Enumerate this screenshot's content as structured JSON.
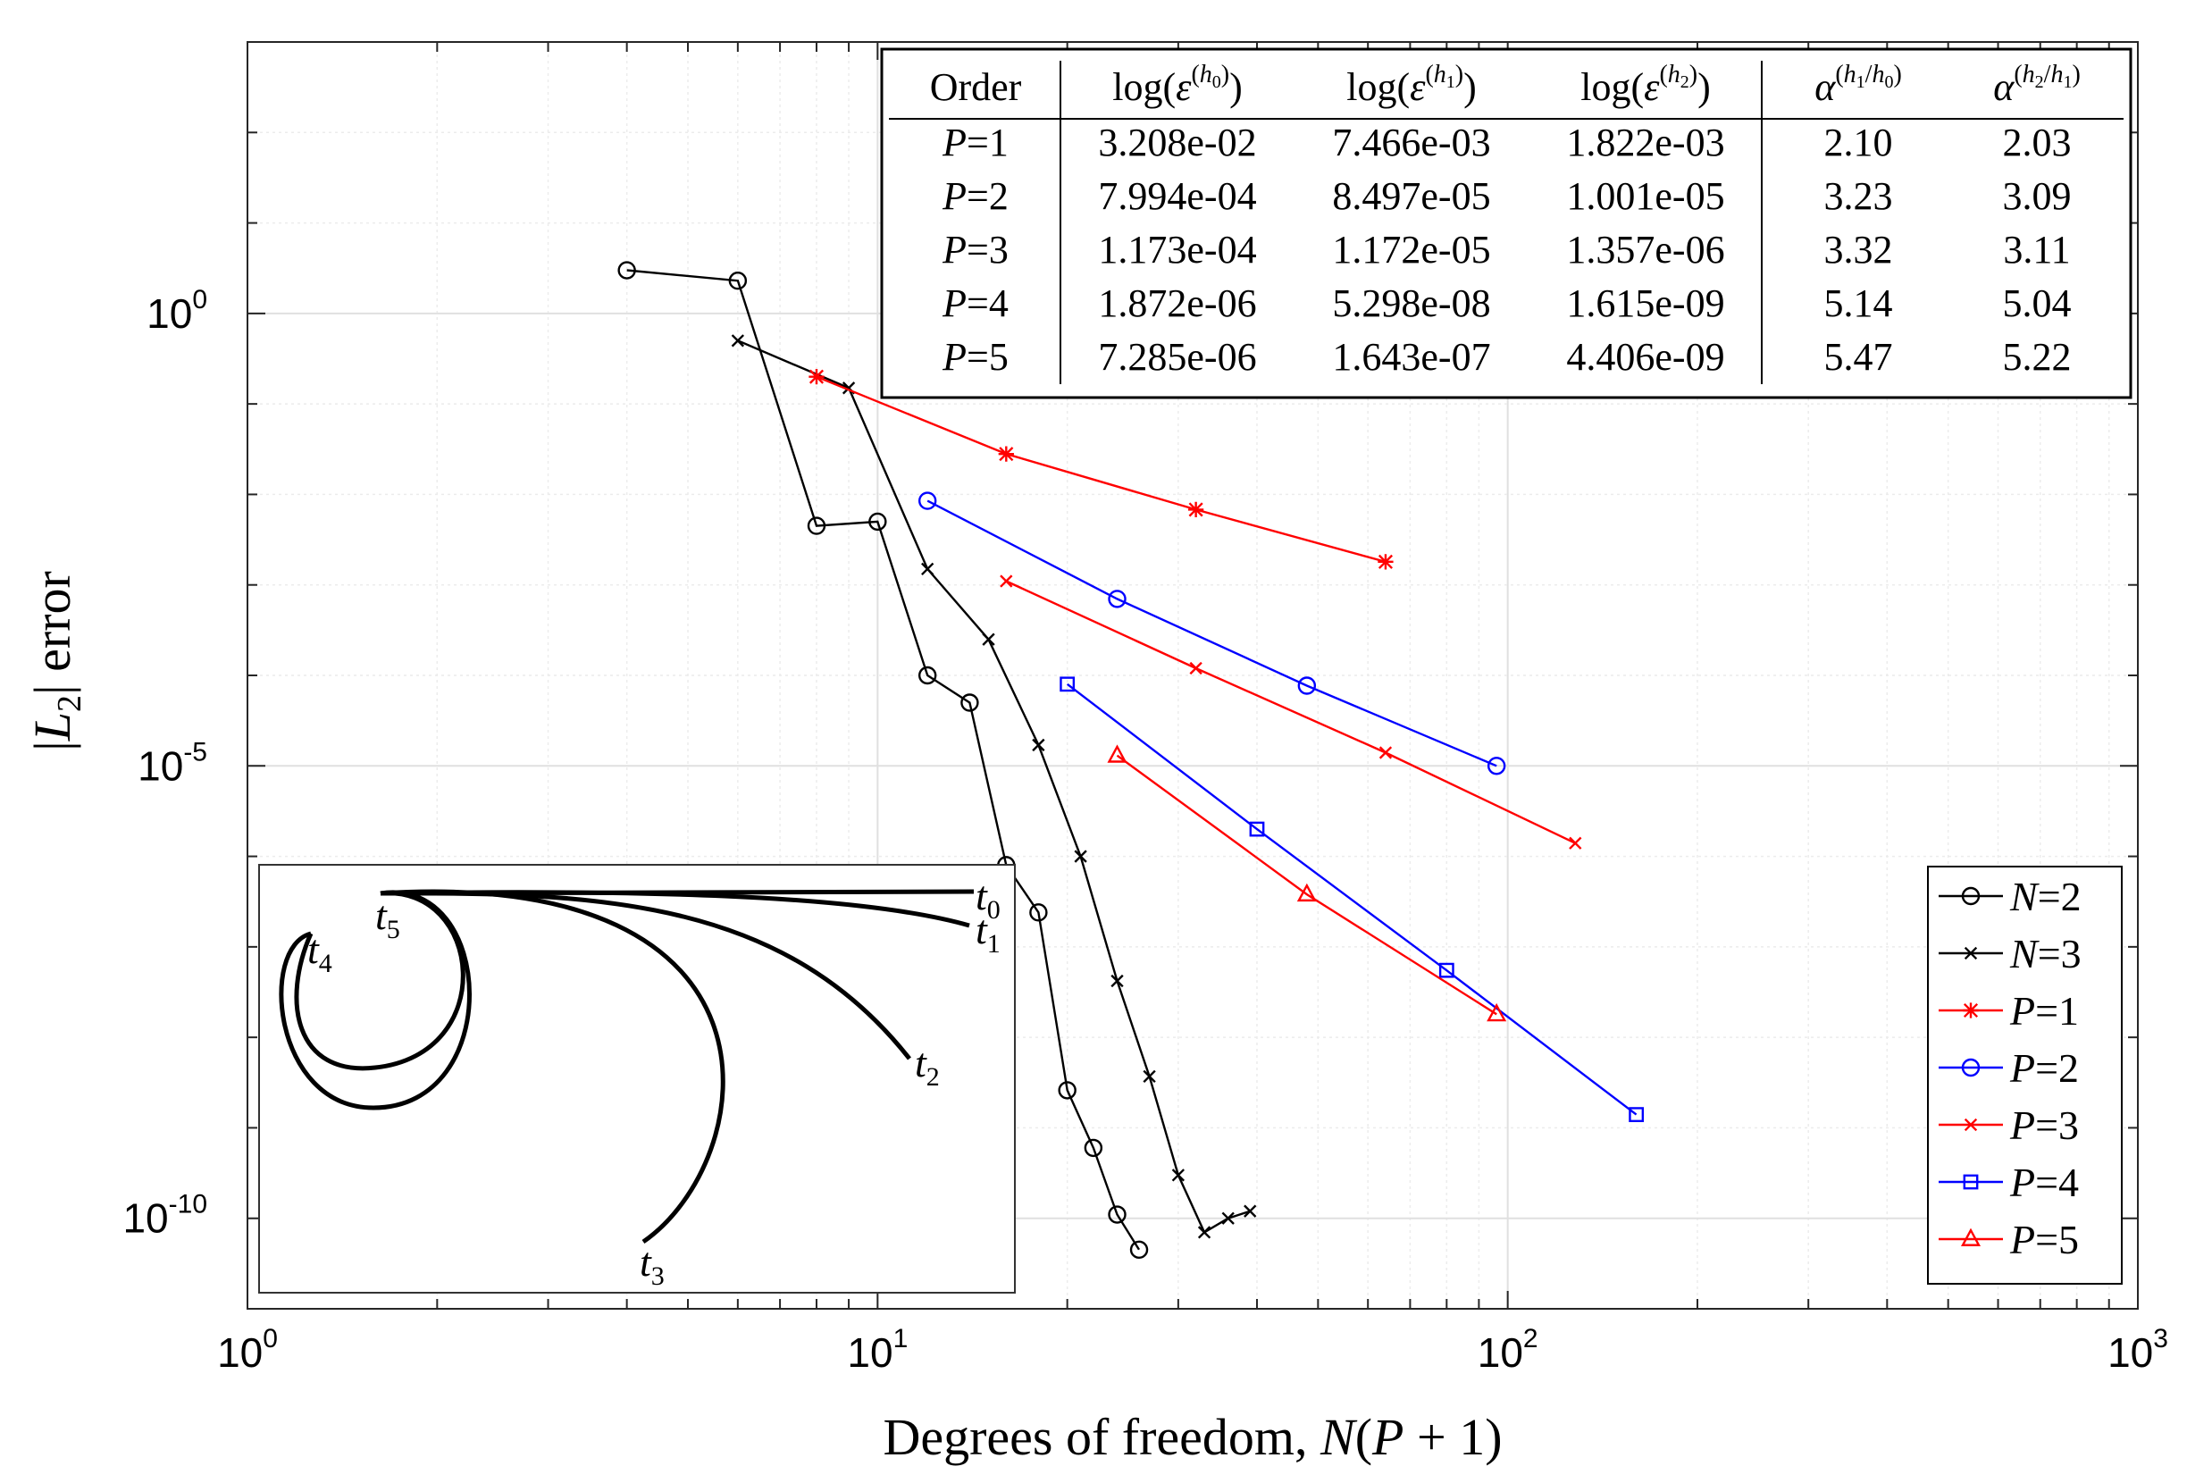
{
  "chart_data": {
    "type": "line",
    "xscale": "log",
    "yscale": "log",
    "xlim": [
      1,
      1000
    ],
    "ylim": [
      1e-11,
      1000
    ],
    "grid": true,
    "xlabel": "Degrees of freedom, N(P + 1)",
    "ylabel": "|L2| error",
    "x_ticks": [
      {
        "value": 1,
        "base": "10",
        "exp": "0"
      },
      {
        "value": 10,
        "base": "10",
        "exp": "1"
      },
      {
        "value": 100,
        "base": "10",
        "exp": "2"
      },
      {
        "value": 1000,
        "base": "10",
        "exp": "3"
      }
    ],
    "y_ticks": [
      {
        "value": 1,
        "base": "10",
        "exp": "0"
      },
      {
        "value": 1e-05,
        "base": "10",
        "exp": "-5"
      },
      {
        "value": 1e-10,
        "base": "10",
        "exp": "-10"
      }
    ],
    "legend_position": "bottom-right",
    "series": [
      {
        "name": "N=2",
        "label_var": "N",
        "label_val": "2",
        "color": "#000000",
        "marker": "circle",
        "x": [
          4,
          6,
          8,
          10,
          12,
          14,
          16,
          18,
          20,
          22,
          24,
          26
        ],
        "y": [
          3,
          2.3,
          0.0045,
          0.005,
          0.0001,
          5e-05,
          8e-07,
          2.4e-07,
          2.6e-09,
          6e-10,
          1.1e-10,
          4.5e-11
        ]
      },
      {
        "name": "N=3",
        "label_var": "N",
        "label_val": "3",
        "color": "#000000",
        "marker": "x",
        "x": [
          6,
          9,
          12,
          15,
          18,
          21,
          24,
          27,
          30,
          33,
          36,
          39
        ],
        "y": [
          0.5,
          0.15,
          0.0015,
          0.00025,
          1.7e-05,
          1e-06,
          4.2e-08,
          3.7e-09,
          3e-10,
          7e-11,
          1e-10,
          1.2e-10
        ]
      },
      {
        "name": "P=1",
        "label_var": "P",
        "label_val": "1",
        "color": "#ff0000",
        "marker": "asterisk",
        "x": [
          8,
          16,
          32,
          64
        ],
        "y": [
          0.2,
          0.028,
          0.0068,
          0.0018
        ]
      },
      {
        "name": "P=2",
        "label_var": "P",
        "label_val": "2",
        "color": "#0000ff",
        "marker": "circle",
        "x": [
          12,
          24,
          48,
          96
        ],
        "y": [
          0.0085,
          0.0007,
          7.7e-05,
          1e-05
        ]
      },
      {
        "name": "P=3",
        "label_var": "P",
        "label_val": "3",
        "color": "#ff0000",
        "marker": "x",
        "x": [
          16,
          32,
          64,
          128
        ],
        "y": [
          0.0011,
          0.00012,
          1.4e-05,
          1.4e-06
        ]
      },
      {
        "name": "P=4",
        "label_var": "P",
        "label_val": "4",
        "color": "#0000ff",
        "marker": "square",
        "x": [
          20,
          40,
          80,
          160
        ],
        "y": [
          8e-05,
          2e-06,
          5.5e-08,
          1.4e-09
        ]
      },
      {
        "name": "P=5",
        "label_var": "P",
        "label_val": "5",
        "color": "#ff0000",
        "marker": "triangle",
        "x": [
          24,
          48,
          96
        ],
        "y": [
          1.3e-05,
          3.8e-07,
          1.8e-08
        ]
      }
    ],
    "table": {
      "headers": [
        "Order",
        "log(ε(h0))",
        "log(ε(h1))",
        "log(ε(h2))",
        "α(h1/h0)",
        "α(h2/h1)"
      ],
      "rows": [
        {
          "order_var": "P",
          "order_val": "1",
          "cells": [
            "3.208e-02",
            "7.466e-03",
            "1.822e-03",
            "2.10",
            "2.03"
          ]
        },
        {
          "order_var": "P",
          "order_val": "2",
          "cells": [
            "7.994e-04",
            "8.497e-05",
            "1.001e-05",
            "3.23",
            "3.09"
          ]
        },
        {
          "order_var": "P",
          "order_val": "3",
          "cells": [
            "1.173e-04",
            "1.172e-05",
            "1.357e-06",
            "3.32",
            "3.11"
          ]
        },
        {
          "order_var": "P",
          "order_val": "4",
          "cells": [
            "1.872e-06",
            "5.298e-08",
            "1.615e-09",
            "5.14",
            "5.04"
          ]
        },
        {
          "order_var": "P",
          "order_val": "5",
          "cells": [
            "7.285e-06",
            "1.643e-07",
            "4.406e-09",
            "5.47",
            "5.22"
          ]
        }
      ]
    },
    "inset_labels": [
      {
        "sym": "t",
        "sub": "0"
      },
      {
        "sym": "t",
        "sub": "1"
      },
      {
        "sym": "t",
        "sub": "2"
      },
      {
        "sym": "t",
        "sub": "3"
      },
      {
        "sym": "t",
        "sub": "4"
      },
      {
        "sym": "t",
        "sub": "5"
      }
    ]
  }
}
